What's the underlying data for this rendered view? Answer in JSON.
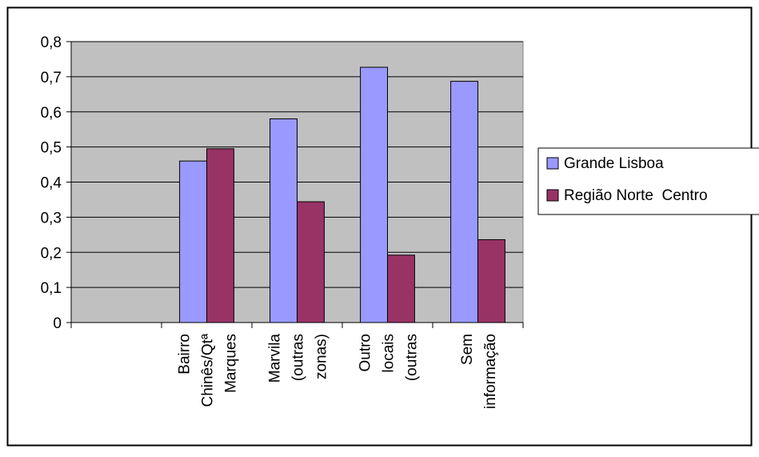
{
  "chart_data": {
    "type": "bar",
    "categories": [
      "",
      "Bairro Chinês/Qtª Marques",
      "Marvila (outras zonas)",
      "Outro locais (outras",
      "Sem informação"
    ],
    "category_label_lines": [
      [],
      [
        "Bairro",
        "Chinês/Qtª",
        "Marques"
      ],
      [
        "Marvila",
        "(outras",
        "zonas)"
      ],
      [
        "Outro",
        "locais",
        "(outras"
      ],
      [
        "Sem",
        "informação"
      ]
    ],
    "series": [
      {
        "name": "Grande Lisboa",
        "values": [
          null,
          0.46,
          0.58,
          0.727,
          0.687
        ],
        "color": "#9999FF"
      },
      {
        "name": "Região Norte  Centro",
        "values": [
          null,
          0.495,
          0.344,
          0.192,
          0.236
        ],
        "color": "#993366"
      }
    ],
    "ylim": [
      0,
      0.8
    ],
    "yticks": [
      "0",
      "0,1",
      "0,2",
      "0,3",
      "0,4",
      "0,5",
      "0,6",
      "0,7",
      "0,8"
    ],
    "grid": true,
    "plot_background": "#C0C0C0",
    "legend_position": "right",
    "title": "",
    "xlabel": "",
    "ylabel": ""
  }
}
